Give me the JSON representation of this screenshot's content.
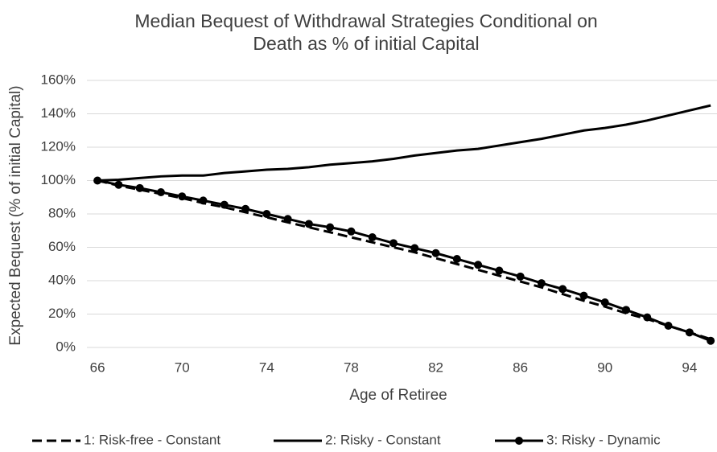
{
  "chart_data": {
    "type": "line",
    "title": [
      "Median Bequest of Withdrawal Strategies Conditional on",
      "Death as % of initial Capital"
    ],
    "x_label": "Age of Retiree",
    "y_label": "Expected Bequest (% of initial Capital)",
    "x": [
      66,
      67,
      68,
      69,
      70,
      71,
      72,
      73,
      74,
      75,
      76,
      77,
      78,
      79,
      80,
      81,
      82,
      83,
      84,
      85,
      86,
      87,
      88,
      89,
      90,
      91,
      92,
      93,
      94,
      95
    ],
    "xlim": [
      65.5,
      95.3
    ],
    "xticks": [
      66,
      70,
      74,
      78,
      82,
      86,
      90,
      94
    ],
    "ylim": [
      0,
      160
    ],
    "yticks": [
      {
        "value": 0,
        "label": "0%"
      },
      {
        "value": 20,
        "label": "20%"
      },
      {
        "value": 40,
        "label": "40%"
      },
      {
        "value": 60,
        "label": "60%"
      },
      {
        "value": 80,
        "label": "80%"
      },
      {
        "value": 100,
        "label": "100%"
      },
      {
        "value": 120,
        "label": "120%"
      },
      {
        "value": 140,
        "label": "140%"
      },
      {
        "value": 160,
        "label": "160%"
      }
    ],
    "grid": true,
    "legend": "bottom",
    "series": [
      {
        "name": "1: Risk-free - Constant",
        "color": "#000000",
        "dash": true,
        "marker": false,
        "values": [
          100,
          97,
          94.5,
          92,
          89.5,
          86.5,
          84,
          81,
          78,
          75,
          72,
          69,
          66,
          63,
          60,
          57,
          53.5,
          50,
          46.5,
          43,
          39.5,
          36,
          32,
          28,
          24.5,
          20.5,
          17,
          13,
          9,
          5
        ]
      },
      {
        "name": "2: Risky - Constant",
        "color": "#000000",
        "dash": false,
        "marker": false,
        "values": [
          100,
          100.5,
          101.5,
          102.5,
          103,
          103,
          104.5,
          105.5,
          106.5,
          107,
          108,
          109.5,
          110.5,
          111.5,
          113,
          115,
          116.5,
          118,
          119,
          121,
          123,
          125,
          127.5,
          130,
          131.5,
          133.5,
          136,
          139,
          142,
          145
        ]
      },
      {
        "name": "3: Risky - Dynamic",
        "color": "#000000",
        "dash": false,
        "marker": true,
        "values": [
          100,
          97.5,
          95.5,
          93,
          90.5,
          88,
          85.5,
          83,
          80,
          77,
          74,
          72,
          69.5,
          66,
          62.5,
          59.5,
          56.5,
          53,
          49.5,
          46,
          42.5,
          38.5,
          35,
          31,
          27,
          22.5,
          18,
          13,
          9,
          4
        ]
      }
    ]
  }
}
